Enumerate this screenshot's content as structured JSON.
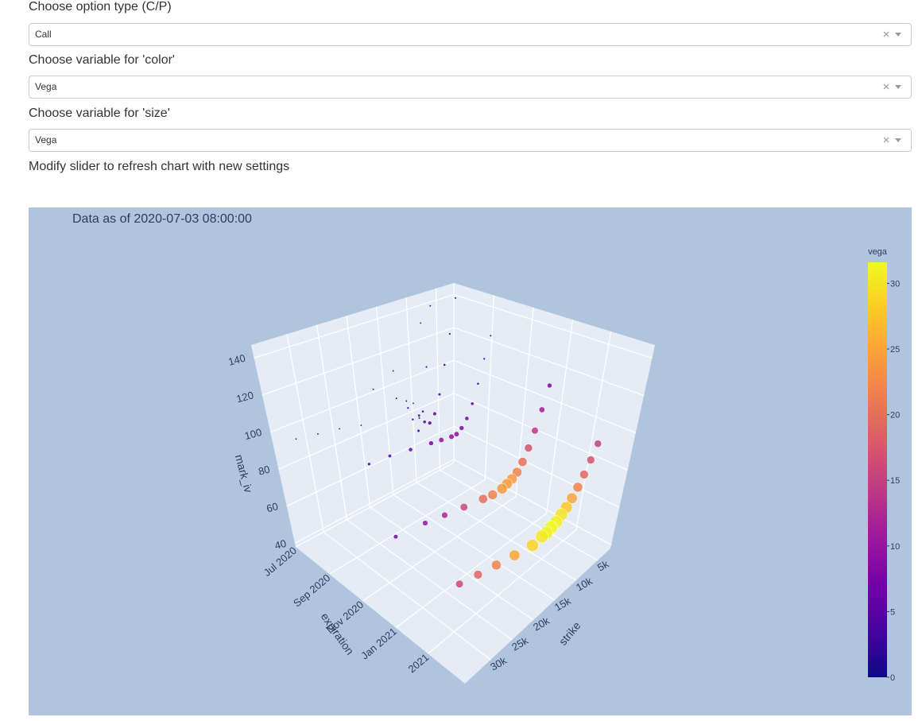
{
  "controls": [
    {
      "label": "Choose option type (C/P)",
      "value": "Call"
    },
    {
      "label": "Choose variable for 'color'",
      "value": "Vega"
    },
    {
      "label": "Choose variable for 'size'",
      "value": "Vega"
    }
  ],
  "instruction": "Modify slider to refresh chart with new settings",
  "chart_data": {
    "type": "scatter3d",
    "title": "Data as of 2020-07-03 08:00:00",
    "x_title": "strike",
    "y_title": "expiration",
    "z_title": "mark_iv",
    "colorbar_title": "vega",
    "xlim": [
      2000,
      36000
    ],
    "xticks": [
      {
        "value": 5000,
        "label": "5k"
      },
      {
        "value": 10000,
        "label": "10k"
      },
      {
        "value": 15000,
        "label": "15k"
      },
      {
        "value": 20000,
        "label": "20k"
      },
      {
        "value": 25000,
        "label": "25k"
      },
      {
        "value": 30000,
        "label": "30k"
      }
    ],
    "ylim": [
      "2020-07-01",
      "2021-05-08"
    ],
    "yticks": [
      {
        "value": "2020-07-01",
        "label": "Jul 2020"
      },
      {
        "value": "2020-09-01",
        "label": "Sep 2020"
      },
      {
        "value": "2020-11-01",
        "label": "Nov 2020"
      },
      {
        "value": "2021-01-01",
        "label": "Jan 2021"
      },
      {
        "value": "2021-03-01",
        "label": "2021"
      }
    ],
    "zlim": [
      38,
      147
    ],
    "zticks": [
      40,
      60,
      80,
      100,
      120,
      140
    ],
    "clim": [
      0,
      31.6
    ],
    "cticks": [
      0,
      5,
      10,
      15,
      20,
      25,
      30
    ],
    "colorscale": [
      "#0d0887",
      "#46039f",
      "#7201a8",
      "#9c179e",
      "#bd3786",
      "#d8576b",
      "#ed7953",
      "#fb9f3a",
      "#fdca26",
      "#f0f921"
    ],
    "grid": true,
    "series": [
      {
        "expiration": "2020-07-03",
        "strike": [
          8000,
          9000,
          10000,
          20000,
          24000,
          28000,
          32000
        ],
        "mark_iv": [
          130,
          75,
          85,
          85,
          88,
          90,
          92
        ],
        "vega": [
          0.05,
          0.6,
          0.1,
          0.02,
          0.02,
          0.02,
          0.02
        ]
      },
      {
        "expiration": "2020-07-10",
        "strike": [
          7000,
          8000,
          9000,
          10000,
          11000,
          12000,
          14000
        ],
        "mark_iv": [
          140,
          105,
          80,
          70,
          78,
          90,
          110
        ],
        "vega": [
          0.2,
          0.8,
          2,
          3,
          1.5,
          0.5,
          0.1
        ]
      },
      {
        "expiration": "2020-07-31",
        "strike": [
          5000,
          6000,
          7000,
          8000,
          9000,
          10000,
          11000,
          12000,
          14000,
          16000,
          20000
        ],
        "mark_iv": [
          145,
          125,
          108,
          92,
          82,
          78,
          80,
          85,
          92,
          100,
          110
        ],
        "vega": [
          0.5,
          1,
          2,
          3,
          5,
          5.5,
          4,
          2.5,
          1,
          0.5,
          0.2
        ]
      },
      {
        "expiration": "2020-09-25",
        "strike": [
          5000,
          6000,
          7000,
          8000,
          9000,
          10000,
          11000,
          12000,
          14000,
          16000,
          20000,
          24000,
          28000
        ],
        "mark_iv": [
          130,
          118,
          105,
          95,
          88,
          84,
          82,
          82,
          83,
          84,
          86,
          88,
          89
        ],
        "vega": [
          0.5,
          1,
          2,
          4,
          6,
          8,
          9,
          9.5,
          9,
          8,
          6,
          4.5,
          3.5
        ]
      },
      {
        "expiration": "2020-12-25",
        "strike": [
          4000,
          5000,
          6000,
          7000,
          8000,
          9000,
          10000,
          11000,
          12000,
          14000,
          16000,
          20000,
          24000,
          28000,
          34000
        ],
        "mark_iv": [
          112,
          100,
          90,
          82,
          76,
          72,
          70,
          69,
          68,
          68,
          69,
          71,
          73,
          75,
          77
        ],
        "vega": [
          8,
          11,
          14,
          17,
          20,
          22,
          24,
          24.5,
          24,
          22,
          20,
          16,
          12,
          10,
          7
        ]
      },
      {
        "expiration": "2021-03-26",
        "strike": [
          4000,
          5000,
          6000,
          7000,
          8000,
          9000,
          10000,
          11000,
          12000,
          13000,
          14000,
          16000,
          20000,
          24000,
          28000,
          32000
        ],
        "mark_iv": [
          92,
          85,
          79,
          74,
          70,
          67,
          65,
          63,
          62,
          61,
          61,
          60,
          62,
          64,
          66,
          68
        ],
        "vega": [
          15,
          17,
          19,
          22,
          25,
          28,
          30,
          31,
          31.5,
          31,
          30.5,
          29,
          25,
          22,
          19,
          16
        ]
      }
    ]
  }
}
